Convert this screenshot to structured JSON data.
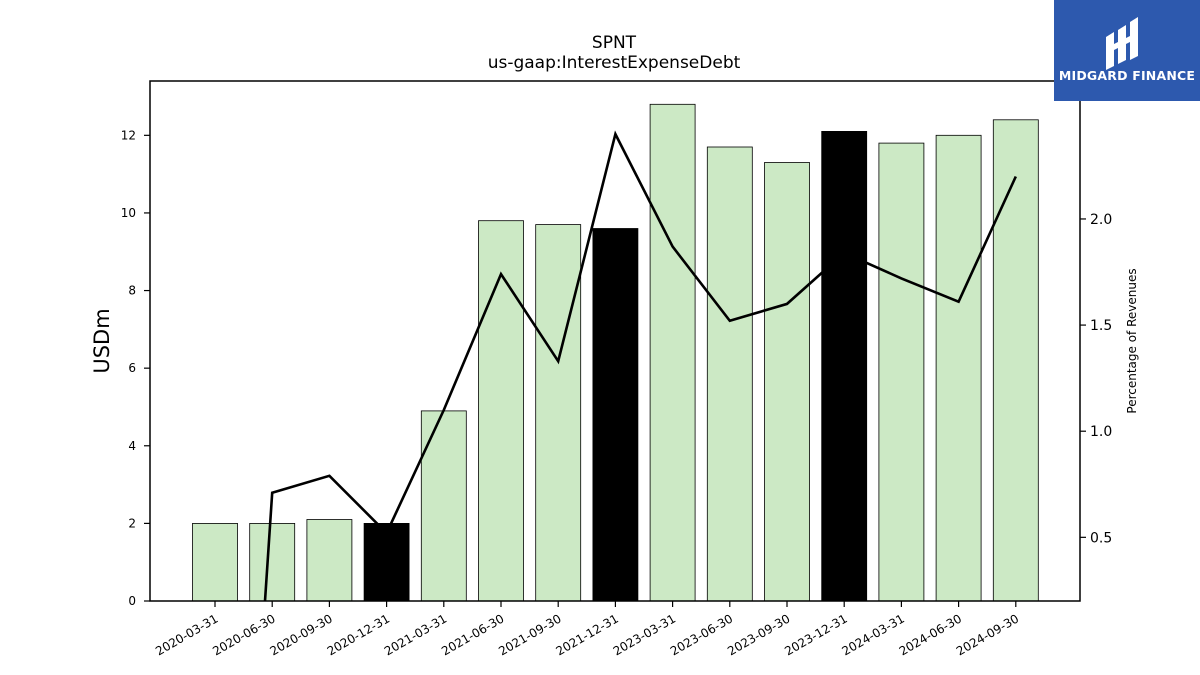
{
  "chart_data": {
    "type": "bar",
    "title": "SPNT",
    "subtitle": "us-gaap:InterestExpenseDebt",
    "ylabel": "USDm",
    "y2label": "Percentage of Revenues",
    "categories": [
      "2020-03-31",
      "2020-06-30",
      "2020-09-30",
      "2020-12-31",
      "2021-03-31",
      "2021-06-30",
      "2021-09-30",
      "2021-12-31",
      "2023-03-31",
      "2023-06-30",
      "2023-09-30",
      "2023-12-31",
      "2024-03-31",
      "2024-06-30",
      "2024-09-30"
    ],
    "series": [
      {
        "type": "bar",
        "axis": "left",
        "values": [
          2.0,
          2.0,
          2.1,
          2.0,
          4.9,
          9.8,
          9.7,
          9.6,
          12.8,
          11.7,
          11.3,
          12.1,
          11.8,
          12.0,
          12.4
        ],
        "highlighted": [
          false,
          false,
          false,
          true,
          false,
          false,
          false,
          true,
          false,
          false,
          false,
          true,
          false,
          false,
          false
        ]
      },
      {
        "type": "line",
        "axis": "right",
        "values": [
          null,
          0.71,
          0.79,
          0.52,
          1.1,
          1.74,
          1.33,
          2.4,
          1.87,
          1.52,
          1.6,
          1.84,
          1.72,
          1.61,
          2.2
        ]
      }
    ],
    "ylim": [
      0,
      13.4
    ],
    "yticks": [
      0,
      2,
      4,
      6,
      8,
      10,
      12
    ],
    "y2lim": [
      0.2,
      2.65
    ],
    "y2ticks": [
      0.5,
      1.0,
      1.5,
      2.0
    ],
    "y2ticklabels": [
      "0.5",
      "1.0",
      "1.5",
      "2.0"
    ],
    "grid": false,
    "colors": {
      "bar": "#cce9c5",
      "bar_highlight": "#000000",
      "line": "#000000"
    }
  },
  "logo": {
    "text": "MIDGARD FINANCE",
    "background": "#2d59ae"
  }
}
